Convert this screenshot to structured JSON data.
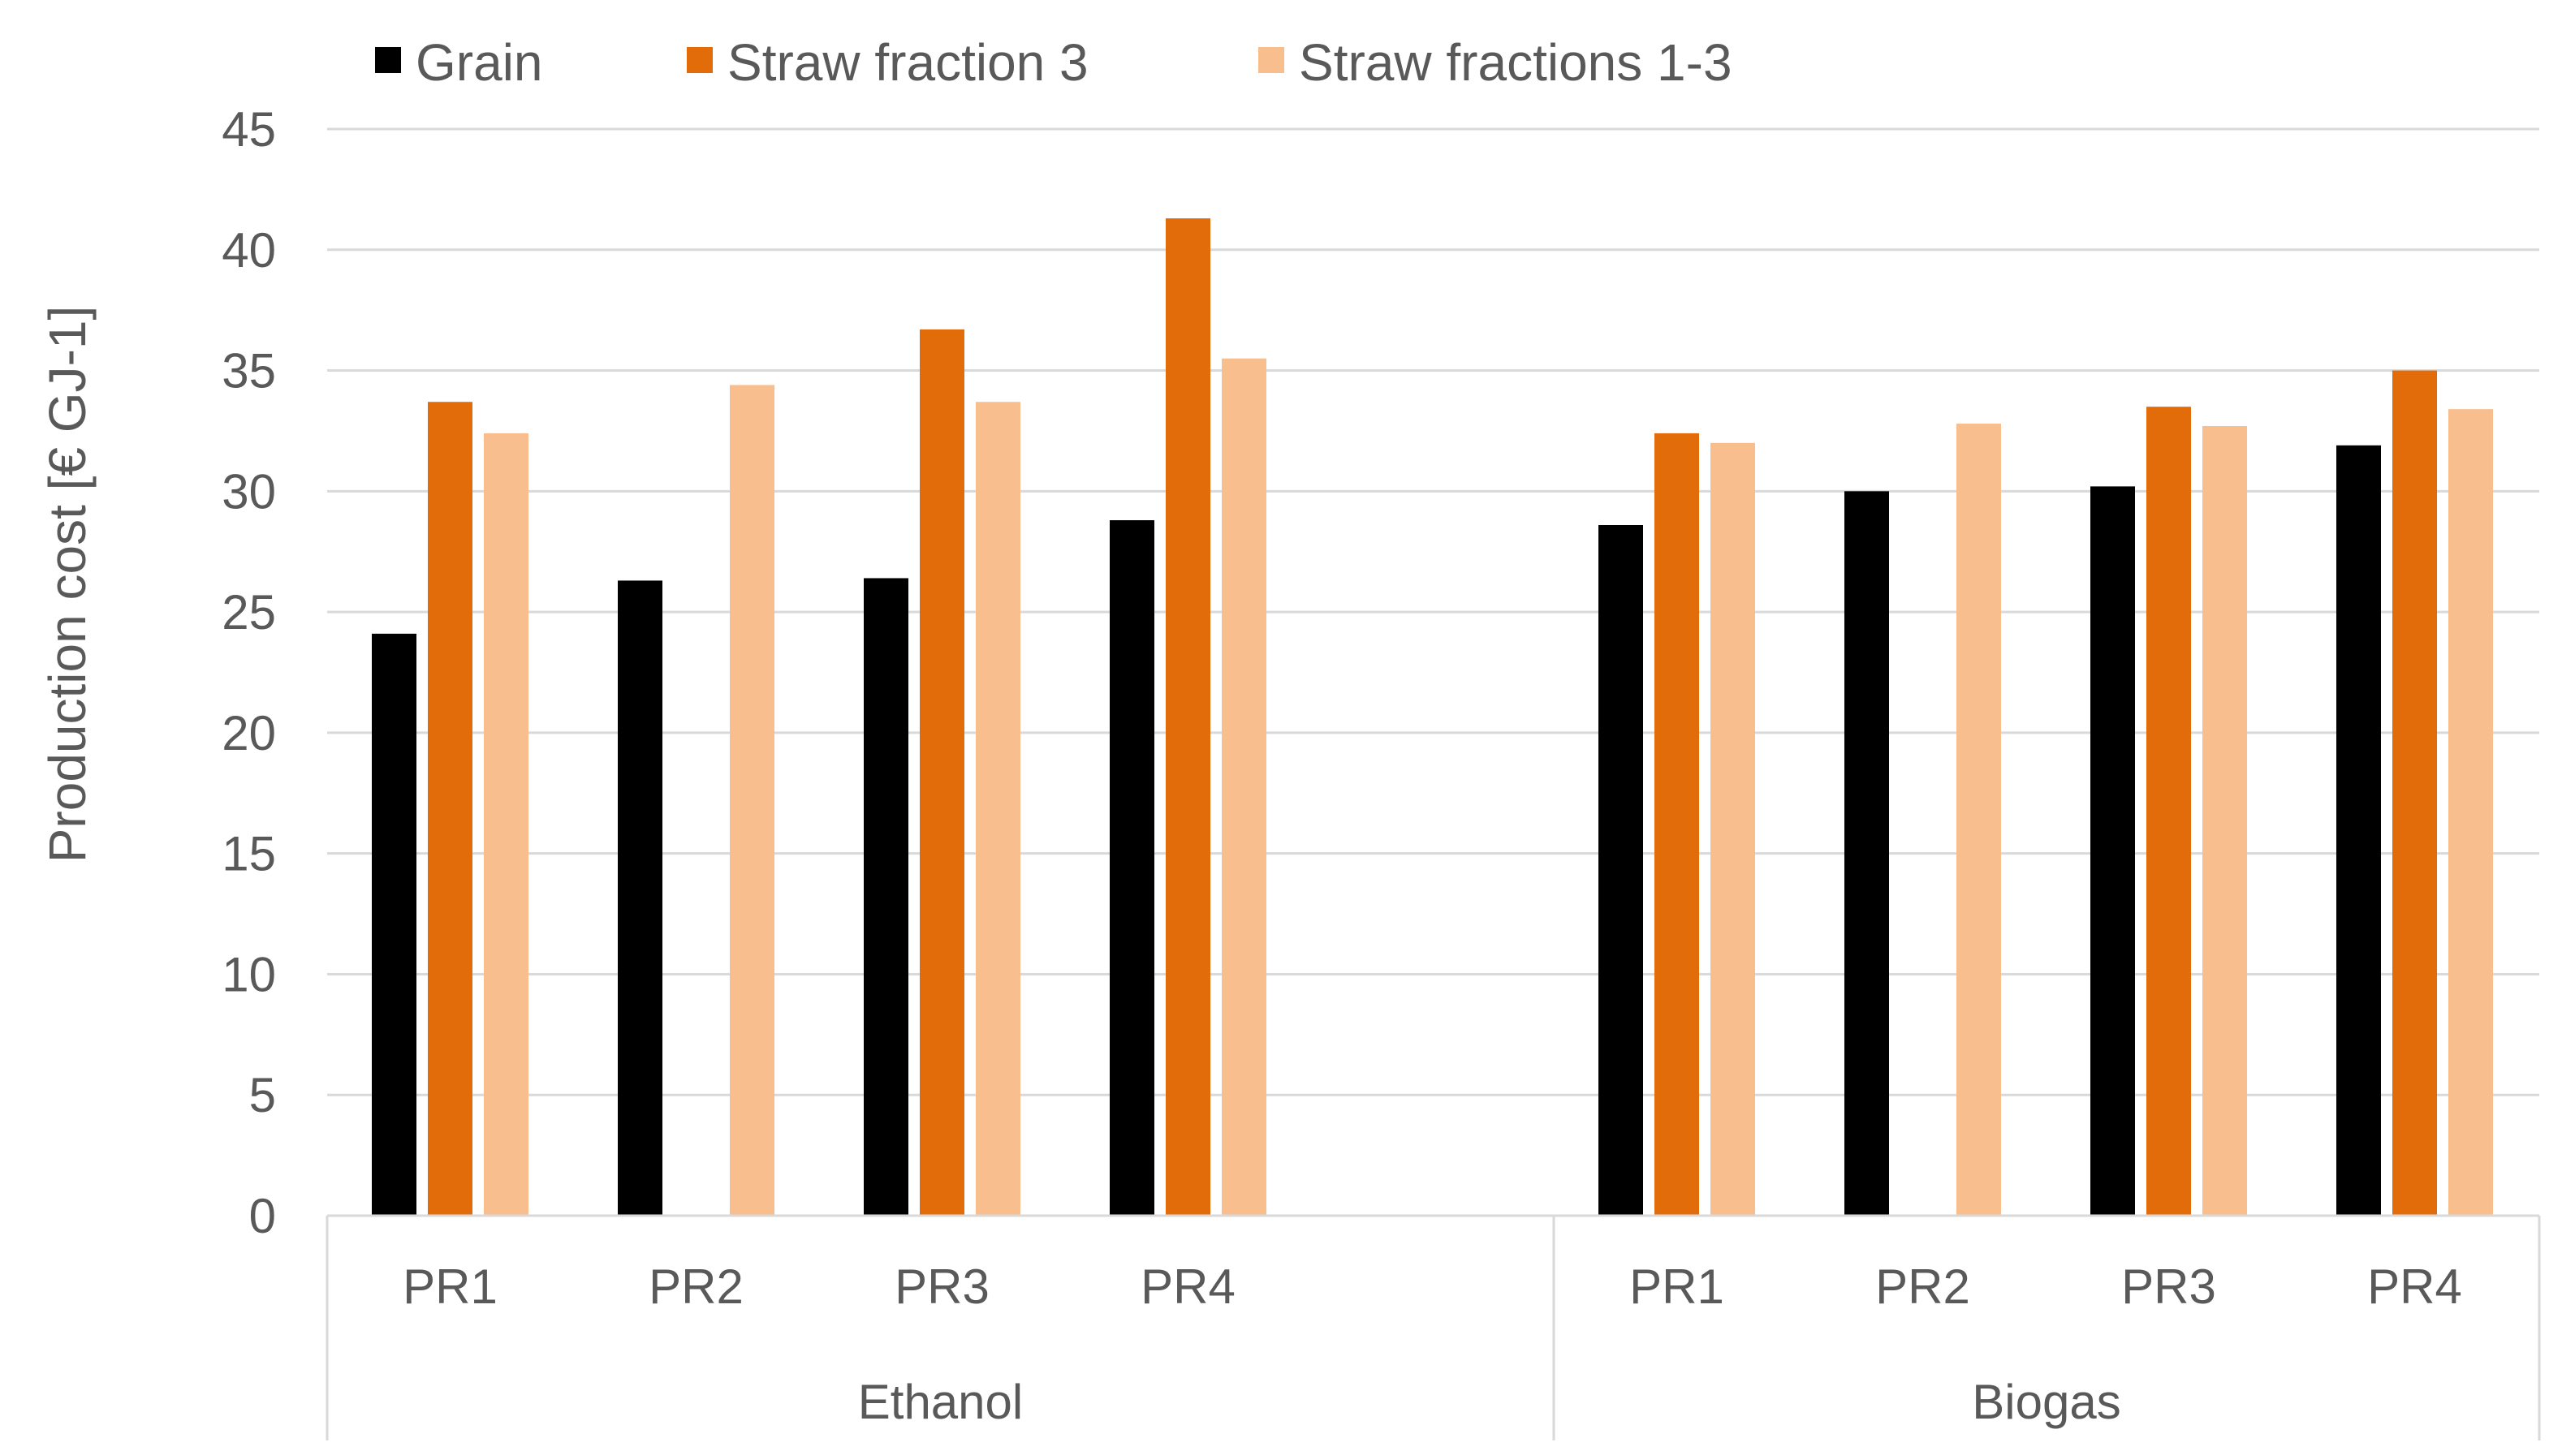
{
  "chart_data": {
    "type": "bar",
    "ylabel": "Production cost [€ GJ-1]",
    "xlabel": "",
    "ylim": [
      0,
      45
    ],
    "ytick_step": 5,
    "grid": true,
    "legend_position": "top-left",
    "groups": [
      {
        "name": "Ethanol",
        "categories": [
          "PR1",
          "PR2",
          "PR3",
          "PR4"
        ]
      },
      {
        "name": "Biogas",
        "categories": [
          "PR1",
          "PR2",
          "PR3",
          "PR4"
        ]
      }
    ],
    "series": [
      {
        "name": "Grain",
        "color": "#000000",
        "values": [
          24.1,
          26.3,
          26.4,
          28.8,
          28.6,
          30.0,
          30.2,
          31.9
        ]
      },
      {
        "name": "Straw fraction 3",
        "color": "#E26B0A",
        "values": [
          33.7,
          null,
          36.7,
          41.3,
          32.4,
          null,
          33.5,
          35.0
        ]
      },
      {
        "name": "Straw fractions 1-3",
        "color": "#F9BE8E",
        "values": [
          32.4,
          34.4,
          33.7,
          35.5,
          32.0,
          32.8,
          32.7,
          33.4
        ]
      }
    ]
  }
}
